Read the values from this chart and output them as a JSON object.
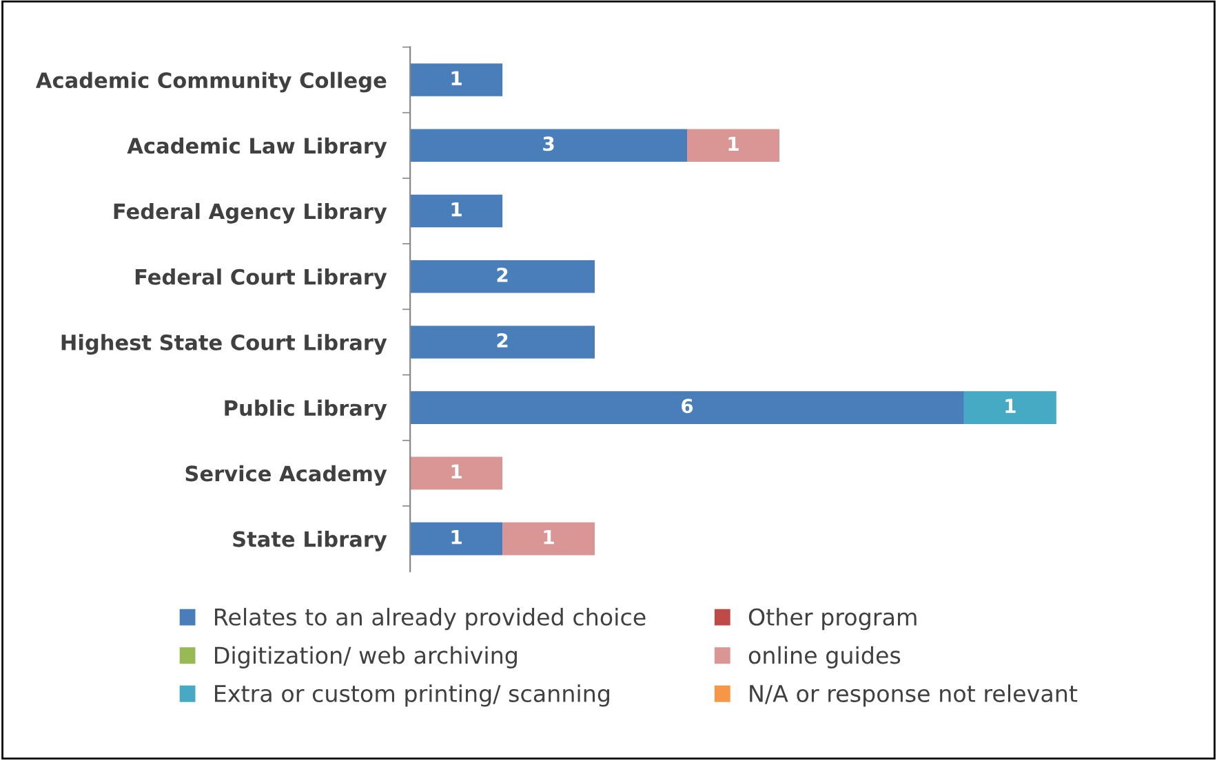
{
  "chart_data": {
    "type": "bar",
    "orientation": "horizontal",
    "stacked": true,
    "data_labels": true,
    "legend": "bottom",
    "grid": false,
    "categories": [
      "Academic Community College",
      "Academic Law Library",
      "Federal Agency Library",
      "Federal Court Library",
      "Highest State Court Library",
      "Public Library",
      "Service Academy",
      "State Library"
    ],
    "series": [
      {
        "name": "Relates to an already provided choice",
        "color": "#4a7ebb",
        "values": [
          1,
          3,
          1,
          2,
          2,
          6,
          null,
          1
        ]
      },
      {
        "name": "Other program",
        "color": "#be4b48",
        "values": [
          null,
          null,
          null,
          null,
          null,
          null,
          null,
          null
        ]
      },
      {
        "name": "Digitization/ web archiving",
        "color": "#98b954",
        "values": [
          null,
          null,
          null,
          null,
          null,
          null,
          null,
          null
        ]
      },
      {
        "name": "online guides",
        "color": "#d99694",
        "values": [
          null,
          1,
          null,
          null,
          null,
          null,
          1,
          1
        ]
      },
      {
        "name": "Extra or custom printing/ scanning",
        "color": "#46aac5",
        "values": [
          null,
          null,
          null,
          null,
          null,
          1,
          null,
          null
        ]
      },
      {
        "name": "N/A or response not relevant",
        "color": "#f79646",
        "values": [
          null,
          null,
          null,
          null,
          null,
          null,
          null,
          null
        ]
      }
    ]
  }
}
